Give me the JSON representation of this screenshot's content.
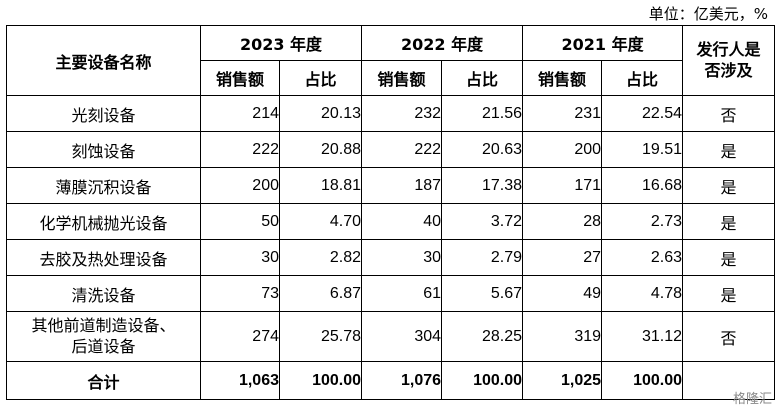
{
  "unit_label": "单位：亿美元，%",
  "table": {
    "name_header": "主要设备名称",
    "years": [
      "2023 年度",
      "2022 年度",
      "2021 年度"
    ],
    "sales_label": "销售额",
    "share_label": "占比",
    "involved_header": "发行人是否涉及",
    "rows": [
      {
        "name": "光刻设备",
        "v2023": "214",
        "p2023": "20.13",
        "v2022": "232",
        "p2022": "21.56",
        "v2021": "231",
        "p2021": "22.54",
        "involved": "否"
      },
      {
        "name": "刻蚀设备",
        "v2023": "222",
        "p2023": "20.88",
        "v2022": "222",
        "p2022": "20.63",
        "v2021": "200",
        "p2021": "19.51",
        "involved": "是"
      },
      {
        "name": "薄膜沉积设备",
        "v2023": "200",
        "p2023": "18.81",
        "v2022": "187",
        "p2022": "17.38",
        "v2021": "171",
        "p2021": "16.68",
        "involved": "是"
      },
      {
        "name": "化学机械抛光设备",
        "v2023": "50",
        "p2023": "4.70",
        "v2022": "40",
        "p2022": "3.72",
        "v2021": "28",
        "p2021": "2.73",
        "involved": "是"
      },
      {
        "name": "去胶及热处理设备",
        "v2023": "30",
        "p2023": "2.82",
        "v2022": "30",
        "p2022": "2.79",
        "v2021": "27",
        "p2021": "2.63",
        "involved": "是"
      },
      {
        "name": "清洗设备",
        "v2023": "73",
        "p2023": "6.87",
        "v2022": "61",
        "p2022": "5.67",
        "v2021": "49",
        "p2021": "4.78",
        "involved": "是"
      },
      {
        "name": "其他前道制造设备、后道设备",
        "v2023": "274",
        "p2023": "25.78",
        "v2022": "304",
        "p2022": "28.25",
        "v2021": "319",
        "p2021": "31.12",
        "involved": "否"
      }
    ],
    "total": {
      "name": "合计",
      "v2023": "1,063",
      "p2023": "100.00",
      "v2022": "1,076",
      "p2022": "100.00",
      "v2021": "1,025",
      "p2021": "100.00",
      "involved": ""
    }
  },
  "watermark": "格隆汇"
}
